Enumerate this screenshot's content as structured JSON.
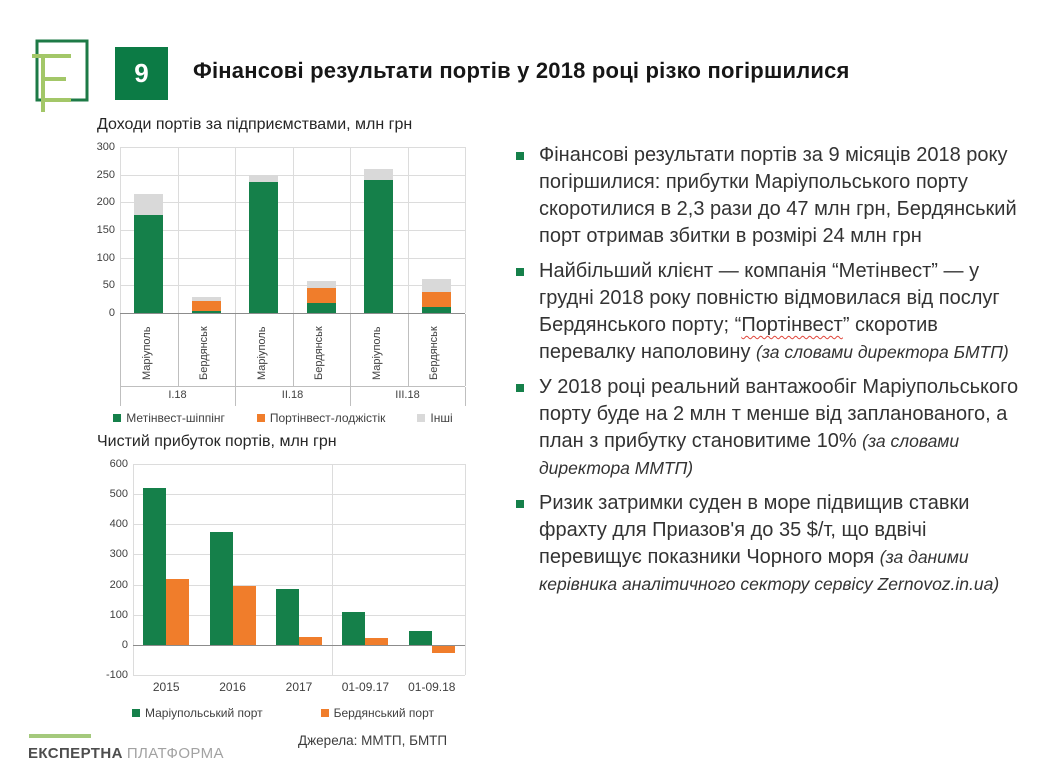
{
  "colors": {
    "green": "#15804A",
    "orange": "#F07D2B",
    "gray": "#D9D9D9",
    "tile_green": "#0C7B45",
    "logo_dark_green": "#1D7A46",
    "logo_light_green": "#A3C768",
    "brand_line_green": "#A4C97C"
  },
  "header": {
    "slide_number": "9",
    "title": "Фінансові результати портів у 2018 році різко погіршилися"
  },
  "chart_data": [
    {
      "type": "bar",
      "stacked": true,
      "title": "Доходи портів за підприємствами, млн грн",
      "categories": [
        "Маріуполь",
        "Бердянськ",
        "Маріуполь",
        "Бердянськ",
        "Маріуполь",
        "Бердянськ"
      ],
      "group_labels": [
        "I.18",
        "II.18",
        "III.18"
      ],
      "series": [
        {
          "name": "Метінвест-шіппінг",
          "color": "#15804A",
          "values": [
            177,
            3,
            236,
            18,
            240,
            11
          ]
        },
        {
          "name": "Портінвест-лоджістік",
          "color": "#F07D2B",
          "values": [
            0,
            19,
            0,
            28,
            0,
            27
          ]
        },
        {
          "name": "Інші",
          "color": "#D9D9D9",
          "values": [
            38,
            7,
            14,
            11,
            21,
            23
          ]
        }
      ],
      "ylim": [
        0,
        300
      ],
      "ytick_step": 50,
      "grid": true,
      "legend_position": "bottom"
    },
    {
      "type": "bar",
      "stacked": false,
      "title": "Чистий прибуток портів, млн грн",
      "categories": [
        "2015",
        "2016",
        "2017",
        "01-09.17",
        "01-09.18"
      ],
      "series": [
        {
          "name": "Маріупольський порт",
          "color": "#15804A",
          "values": [
            520,
            375,
            185,
            108,
            47
          ]
        },
        {
          "name": "Бердянський порт",
          "color": "#F07D2B",
          "values": [
            218,
            195,
            25,
            22,
            -24
          ]
        }
      ],
      "ylim": [
        -100,
        600
      ],
      "ytick_step": 100,
      "grid": true,
      "separator_after_category": 3,
      "legend_position": "bottom"
    }
  ],
  "bullets": [
    {
      "segments": [
        {
          "text": "Фінансові результати портів за 9 місяців 2018 року погіршилися: прибутки Маріупольського порту скоротилися в 2,3 рази до 47 млн грн, Бердянський порт отримав збитки в розмірі 24 млн грн"
        }
      ]
    },
    {
      "segments": [
        {
          "text": "Найбільший клієнт — компанія “Метінвест” — у грудні 2018 року повністю відмовилася від послуг Бердянського порту; “"
        },
        {
          "text": "Портінвест",
          "style": "spell"
        },
        {
          "text": "” скоротив перевалку наполовину "
        },
        {
          "text": "(за словами директора БМТП)",
          "style": "note"
        }
      ]
    },
    {
      "segments": [
        {
          "text": "У 2018 році реальний вантажообіг Маріупольського порту буде на 2 млн т менше від запланованого, а план з прибутку становитиме 10% "
        },
        {
          "text": "(за словами директора ММТП)",
          "style": "note"
        }
      ]
    },
    {
      "segments": [
        {
          "text": "Ризик затримки суден в море підвищив ставки фрахту для Приазов'я до 35 $/т, що вдвічі перевищує показники Чорного моря "
        },
        {
          "text": "(за даними керівника аналітичного сектору сервісу Zernovoz.in.ua)",
          "style": "note"
        }
      ]
    }
  ],
  "sources": "Джерела: ММТП, БМТП",
  "footer": {
    "brand_bold": "ЕКСПЕРТНА",
    "brand_light": "ПЛАТФОРМА"
  }
}
